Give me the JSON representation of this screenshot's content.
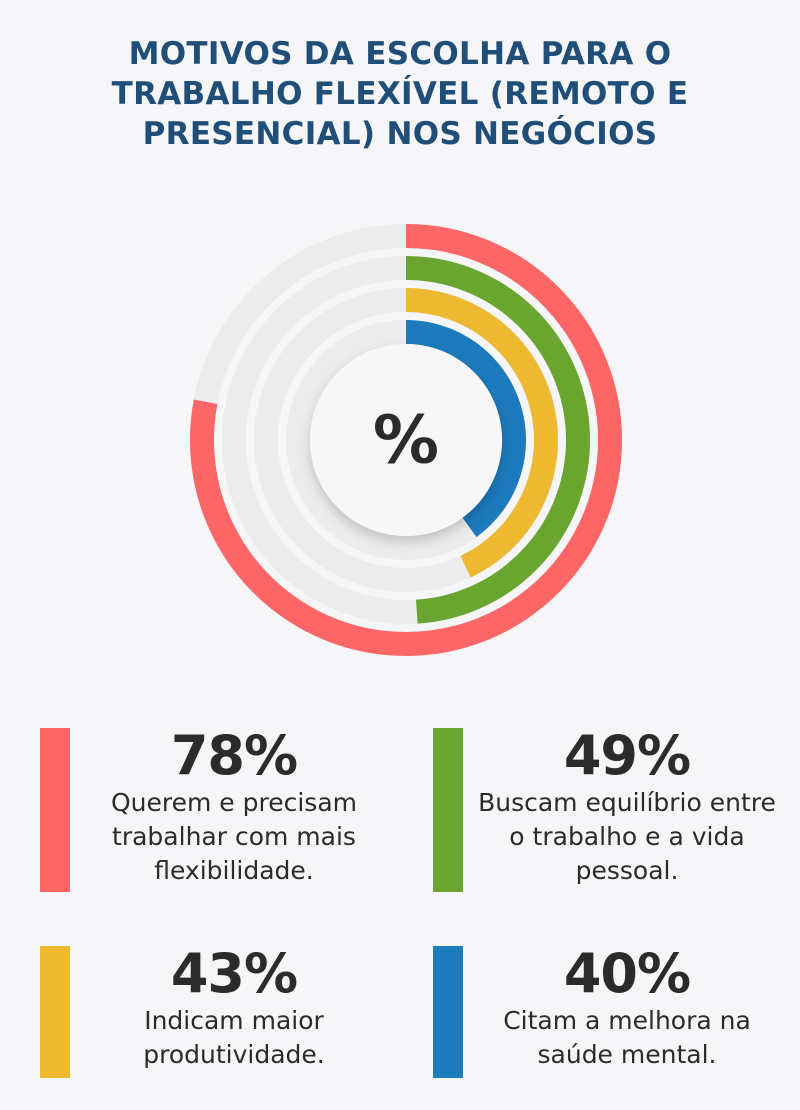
{
  "title": "MOTIVOS DA ESCOLHA PARA O TRABALHO FLEXÍVEL (REMOTO E PRESENCIAL) NOS NEGÓCIOS",
  "center_label": "%",
  "colors": {
    "red": "#fd6666",
    "green": "#6aa52f",
    "yellow": "#ecb931",
    "blue": "#1c7abd",
    "track": "#ececed",
    "title": "#1f4e79"
  },
  "chart_data": {
    "type": "radial-bar",
    "title": "MOTIVOS DA ESCOLHA PARA O TRABALHO FLEXÍVEL (REMOTO E PRESENCIAL) NOS NEGÓCIOS",
    "unit": "%",
    "max": 100,
    "series": [
      {
        "value": 78,
        "label": "78%",
        "description": "Querem e precisam trabalhar com mais flexibilidade.",
        "color": "#fd6666"
      },
      {
        "value": 49,
        "label": "49%",
        "description": "Buscam equilíbrio entre o trabalho e a vida pessoal.",
        "color": "#6aa52f"
      },
      {
        "value": 43,
        "label": "43%",
        "description": "Indicam maior produtividade.",
        "color": "#ecb931"
      },
      {
        "value": 40,
        "label": "40%",
        "description": "Citam a melhora na saúde mental.",
        "color": "#1c7abd"
      }
    ]
  }
}
